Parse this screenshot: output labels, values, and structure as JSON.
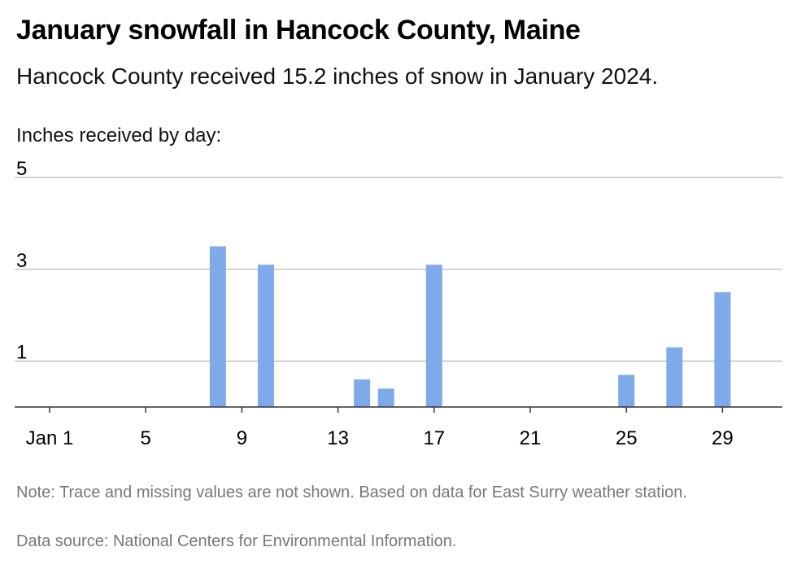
{
  "header": {
    "title": "January snowfall in Hancock County, Maine",
    "subtitle": "Hancock County received 15.2 inches of snow in January 2024."
  },
  "footer": {
    "note": "Note: Trace and missing values are not shown. Based on data for East Surry weather station.",
    "source": "Data source: National Centers for Environmental Information."
  },
  "colors": {
    "bar": "#7eaaea",
    "grid": "#b3b3b3",
    "axis": "#333333"
  },
  "chart_data": {
    "type": "bar",
    "title": "January snowfall in Hancock County, Maine",
    "subtitle": "Hancock County received 15.2 inches of snow in January 2024.",
    "ylabel": "Inches received by day:",
    "xlabel": "",
    "x_range": [
      1,
      31
    ],
    "ylim": [
      0,
      5
    ],
    "y_ticks": [
      1,
      3,
      5
    ],
    "x_ticks": [
      {
        "value": 1,
        "label": "Jan 1"
      },
      {
        "value": 5,
        "label": "5"
      },
      {
        "value": 9,
        "label": "9"
      },
      {
        "value": 13,
        "label": "13"
      },
      {
        "value": 17,
        "label": "17"
      },
      {
        "value": 21,
        "label": "21"
      },
      {
        "value": 25,
        "label": "25"
      },
      {
        "value": 29,
        "label": "29"
      }
    ],
    "grid": true,
    "series": [
      {
        "values": [
          {
            "day": 8,
            "inches": 3.5
          },
          {
            "day": 10,
            "inches": 3.1
          },
          {
            "day": 14,
            "inches": 0.6
          },
          {
            "day": 15,
            "inches": 0.4
          },
          {
            "day": 17,
            "inches": 3.1
          },
          {
            "day": 25,
            "inches": 0.7
          },
          {
            "day": 27,
            "inches": 1.3
          },
          {
            "day": 29,
            "inches": 2.5
          }
        ]
      }
    ]
  }
}
